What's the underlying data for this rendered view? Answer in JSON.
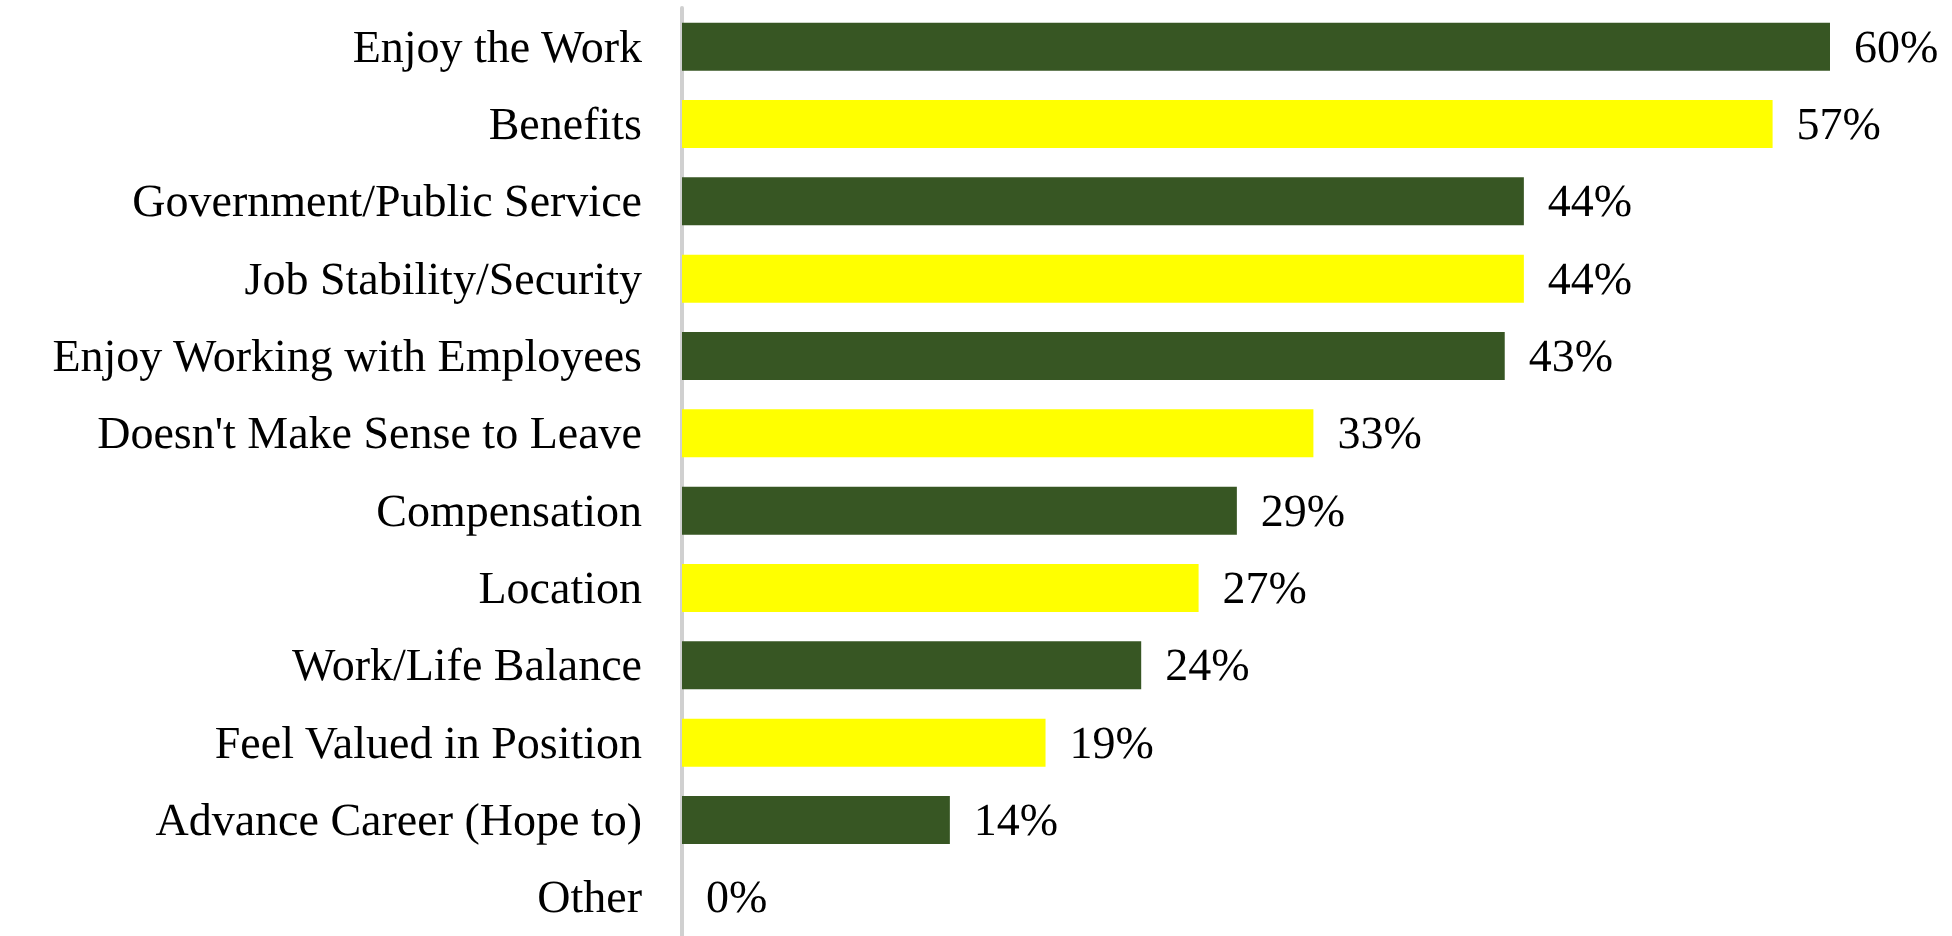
{
  "chart_data": {
    "type": "bar",
    "orientation": "horizontal",
    "categories": [
      "Enjoy the Work",
      "Benefits",
      "Government/Public Service",
      "Job Stability/Security",
      "Enjoy Working with Employees",
      "Doesn't Make Sense to Leave",
      "Compensation",
      "Location",
      "Work/Life Balance",
      "Feel Valued in Position",
      "Advance Career (Hope to)",
      "Other"
    ],
    "values": [
      60,
      57,
      44,
      44,
      43,
      33,
      29,
      27,
      24,
      19,
      14,
      0
    ],
    "colors": [
      "#375623",
      "#ffff00",
      "#375623",
      "#ffff00",
      "#375623",
      "#ffff00",
      "#375623",
      "#ffff00",
      "#375623",
      "#ffff00",
      "#375623",
      "#ffff00"
    ],
    "value_labels": [
      "60%",
      "57%",
      "44%",
      "44%",
      "43%",
      "33%",
      "29%",
      "27%",
      "24%",
      "19%",
      "14%",
      "0%"
    ]
  }
}
